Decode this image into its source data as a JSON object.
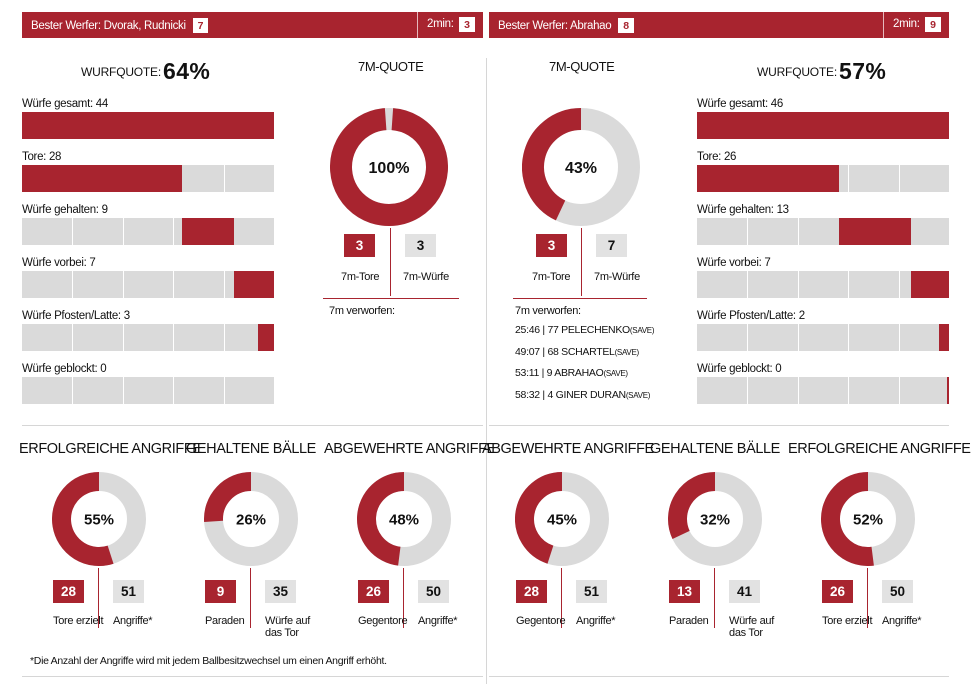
{
  "colors": {
    "accent": "#a8242f",
    "track": "#dadada",
    "box_grey": "#e2e2e2"
  },
  "left_team": {
    "top_bar": {
      "best_label": "Bester Werfer: Dvorak, Rudnicki",
      "best_count": "7",
      "two_min_label": "2min:",
      "two_min_count": "3"
    },
    "wurfquote": {
      "label": "WURFQUOTE:",
      "value": "64%"
    },
    "shots": [
      {
        "label": "Würfe gesamt: 44",
        "start": 0,
        "value": 44,
        "total": 44
      },
      {
        "label": "Tore: 28",
        "start": 0,
        "value": 28,
        "total": 44
      },
      {
        "label": "Würfe gehalten: 9",
        "start": 28,
        "value": 9,
        "total": 44
      },
      {
        "label": "Würfe vorbei: 7",
        "start": 37,
        "value": 7,
        "total": 44
      },
      {
        "label": "Würfe Pfosten/Latte: 3",
        "start": 44,
        "value": 3,
        "total": 47
      },
      {
        "label": "Würfe geblockt: 0",
        "start": 0,
        "value": 0,
        "total": 44
      }
    ],
    "seven_m": {
      "title": "7M-QUOTE",
      "percent_label": "100%",
      "percent": 100,
      "goals": "3",
      "attempts": "3",
      "goals_label": "7m-Tore",
      "attempts_label": "7m-Würfe",
      "missed_label": "7m verworfen:",
      "missed": []
    },
    "circles": [
      {
        "title": "ERFOLGREICHE ANGRIFFE",
        "percent": 55,
        "percent_label": "55%",
        "a": "28",
        "b": "51",
        "a_label": "Tore erzielt",
        "b_label": "Angriffe*"
      },
      {
        "title": "GEHALTENE BÄLLE",
        "percent": 26,
        "percent_label": "26%",
        "a": "9",
        "b": "35",
        "a_label": "Paraden",
        "b_label": "Würfe auf das Tor"
      },
      {
        "title": "ABGEWEHRTE ANGRIFFE",
        "percent": 48,
        "percent_label": "48%",
        "a": "26",
        "b": "50",
        "a_label": "Gegentore",
        "b_label": "Angriffe*"
      }
    ]
  },
  "right_team": {
    "top_bar": {
      "best_label": "Bester Werfer: Abrahao",
      "best_count": "8",
      "two_min_label": "2min:",
      "two_min_count": "9"
    },
    "wurfquote": {
      "label": "WURFQUOTE:",
      "value": "57%"
    },
    "shots": [
      {
        "label": "Würfe gesamt: 46",
        "start": 0,
        "value": 46,
        "total": 46
      },
      {
        "label": "Tore: 26",
        "start": 0,
        "value": 26,
        "total": 46
      },
      {
        "label": "Würfe gehalten: 13",
        "start": 26,
        "value": 13,
        "total": 46
      },
      {
        "label": "Würfe vorbei: 7",
        "start": 39,
        "value": 7,
        "total": 46
      },
      {
        "label": "Würfe Pfosten/Latte: 2",
        "start": 46,
        "value": 2,
        "total": 48
      },
      {
        "label": "Würfe geblockt: 0",
        "start": 46,
        "value": 0.4,
        "total": 46
      }
    ],
    "seven_m": {
      "title": "7M-QUOTE",
      "percent_label": "43%",
      "percent": 43,
      "goals": "3",
      "attempts": "7",
      "goals_label": "7m-Tore",
      "attempts_label": "7m-Würfe",
      "missed_label": "7m verworfen:",
      "missed": [
        {
          "text": "25:46 | 77 PELECHENKO",
          "note": "(SAVE)"
        },
        {
          "text": "49:07 | 68 SCHARTEL",
          "note": "(SAVE)"
        },
        {
          "text": "53:11 | 9 ABRAHAO",
          "note": "(SAVE)"
        },
        {
          "text": "58:32 | 4 GINER DURAN",
          "note": "(SAVE)"
        }
      ]
    },
    "circles": [
      {
        "title": "ABGEWEHRTE ANGRIFFE",
        "percent": 45,
        "percent_label": "45%",
        "a": "28",
        "b": "51",
        "a_label": "Gegentore",
        "b_label": "Angriffe*"
      },
      {
        "title": "GEHALTENE BÄLLE",
        "percent": 32,
        "percent_label": "32%",
        "a": "13",
        "b": "41",
        "a_label": "Paraden",
        "b_label": "Würfe auf das Tor"
      },
      {
        "title": "ERFOLGREICHE ANGRIFFE",
        "percent": 52,
        "percent_label": "52%",
        "a": "26",
        "b": "50",
        "a_label": "Tore erzielt",
        "b_label": "Angriffe*"
      }
    ]
  },
  "footnote": "*Die Anzahl der Angriffe wird mit jedem Ballbesitzwechsel um einen Angriff erhöht."
}
